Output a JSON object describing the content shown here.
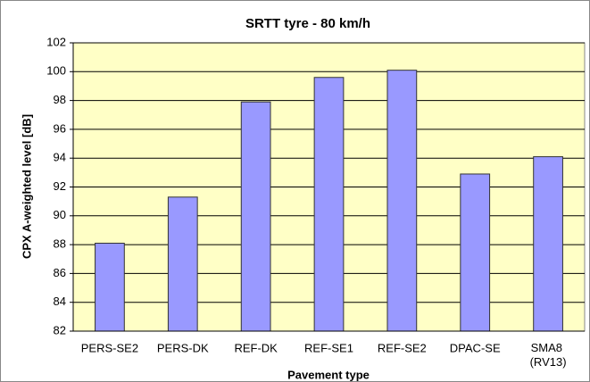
{
  "chart_data": {
    "type": "bar",
    "title": "SRTT tyre - 80 km/h",
    "x_label": "Pavement type",
    "y_label": "CPX A-weighted level [dB]",
    "categories": [
      "PERS-SE2",
      "PERS-DK",
      "REF-DK",
      "REF-SE1",
      "REF-SE2",
      "DPAC-SE",
      "SMA8 (RV13)"
    ],
    "values": [
      88.1,
      91.3,
      97.9,
      99.6,
      100.1,
      92.9,
      94.1
    ],
    "color": "#9999ff",
    "ylim": [
      82,
      102
    ],
    "yticks": [
      82,
      84,
      86,
      88,
      90,
      92,
      94,
      96,
      98,
      100,
      102
    ],
    "grid": true
  }
}
